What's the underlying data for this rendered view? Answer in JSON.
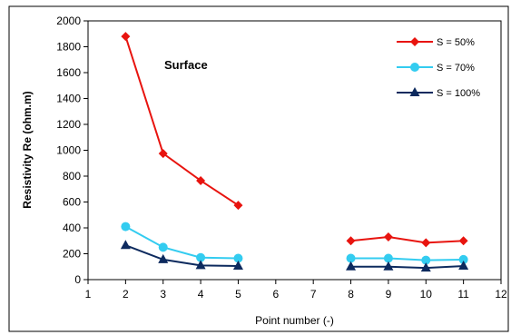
{
  "chart_data": {
    "type": "line",
    "title": "",
    "annotation": "Surface",
    "xlabel": "Point number (-)",
    "ylabel": "Resistivity Re (ohm.m)",
    "xlim": [
      1,
      12
    ],
    "ylim": [
      0,
      2000
    ],
    "x_ticks": [
      "1",
      "2",
      "3",
      "4",
      "5",
      "6",
      "7",
      "8",
      "9",
      "10",
      "11",
      "12"
    ],
    "y_ticks": [
      "0",
      "200",
      "400",
      "600",
      "800",
      "1000",
      "1200",
      "1400",
      "1600",
      "1800",
      "2000"
    ],
    "grid": false,
    "legend_position": "top-right",
    "series": [
      {
        "name": "S = 50%",
        "color": "#e8140f",
        "marker": "diamond",
        "segments": [
          [
            [
              2,
              1880
            ],
            [
              3,
              975
            ],
            [
              4,
              765
            ],
            [
              5,
              575
            ]
          ],
          [
            [
              8,
              300
            ],
            [
              9,
              330
            ],
            [
              10,
              285
            ],
            [
              11,
              300
            ]
          ]
        ]
      },
      {
        "name": "S = 70%",
        "color": "#33ccf0",
        "marker": "circle",
        "segments": [
          [
            [
              2,
              410
            ],
            [
              3,
              250
            ],
            [
              4,
              170
            ],
            [
              5,
              165
            ]
          ],
          [
            [
              8,
              165
            ],
            [
              9,
              165
            ],
            [
              10,
              150
            ],
            [
              11,
              155
            ]
          ]
        ]
      },
      {
        "name": "S = 100%",
        "color": "#0d2a5e",
        "marker": "triangle",
        "segments": [
          [
            [
              2,
              265
            ],
            [
              3,
              155
            ],
            [
              4,
              110
            ],
            [
              5,
              105
            ]
          ],
          [
            [
              8,
              100
            ],
            [
              9,
              100
            ],
            [
              10,
              90
            ],
            [
              11,
              105
            ]
          ]
        ]
      }
    ]
  }
}
